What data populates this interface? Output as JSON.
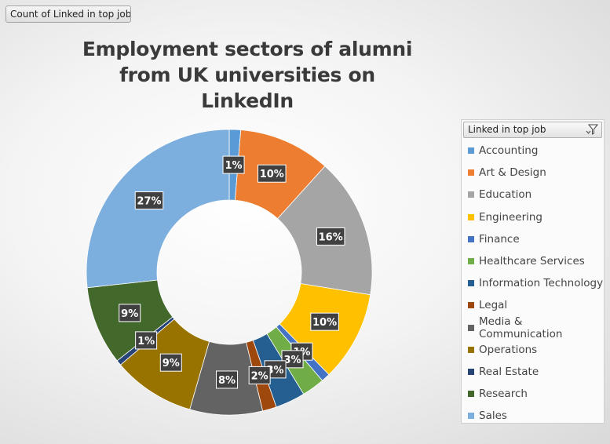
{
  "field_button": {
    "label": "Count of Linked in top job"
  },
  "legend_header": {
    "label": "Linked in top job"
  },
  "chart_data": {
    "type": "pie",
    "variant": "doughnut",
    "title": "Employment sectors of alumni from UK universities on LinkedIn",
    "legend_position": "right",
    "categories": [
      "Accounting",
      "Art & Design",
      "Education",
      "Engineering",
      "Finance",
      "Healthcare Services",
      "Information Technology",
      "Legal",
      "Media & Communication",
      "Operations",
      "Real Estate",
      "Research",
      "Sales"
    ],
    "values": [
      1.3,
      10.5,
      16.0,
      10.3,
      1.0,
      2.6,
      3.4,
      1.6,
      8.3,
      9.4,
      0.6,
      9.0,
      27.0
    ],
    "labels": [
      "1%",
      "10%",
      "16%",
      "10%",
      "1%",
      "3%",
      "3%",
      "2%",
      "8%",
      "9%",
      "1%",
      "9%",
      "27%"
    ],
    "colors": [
      "#5B9BD5",
      "#ED7D31",
      "#A5A5A5",
      "#FFC000",
      "#4472C4",
      "#70AD47",
      "#255E91",
      "#9E480E",
      "#636363",
      "#997300",
      "#264478",
      "#43682B",
      "#7CAFDD"
    ]
  }
}
